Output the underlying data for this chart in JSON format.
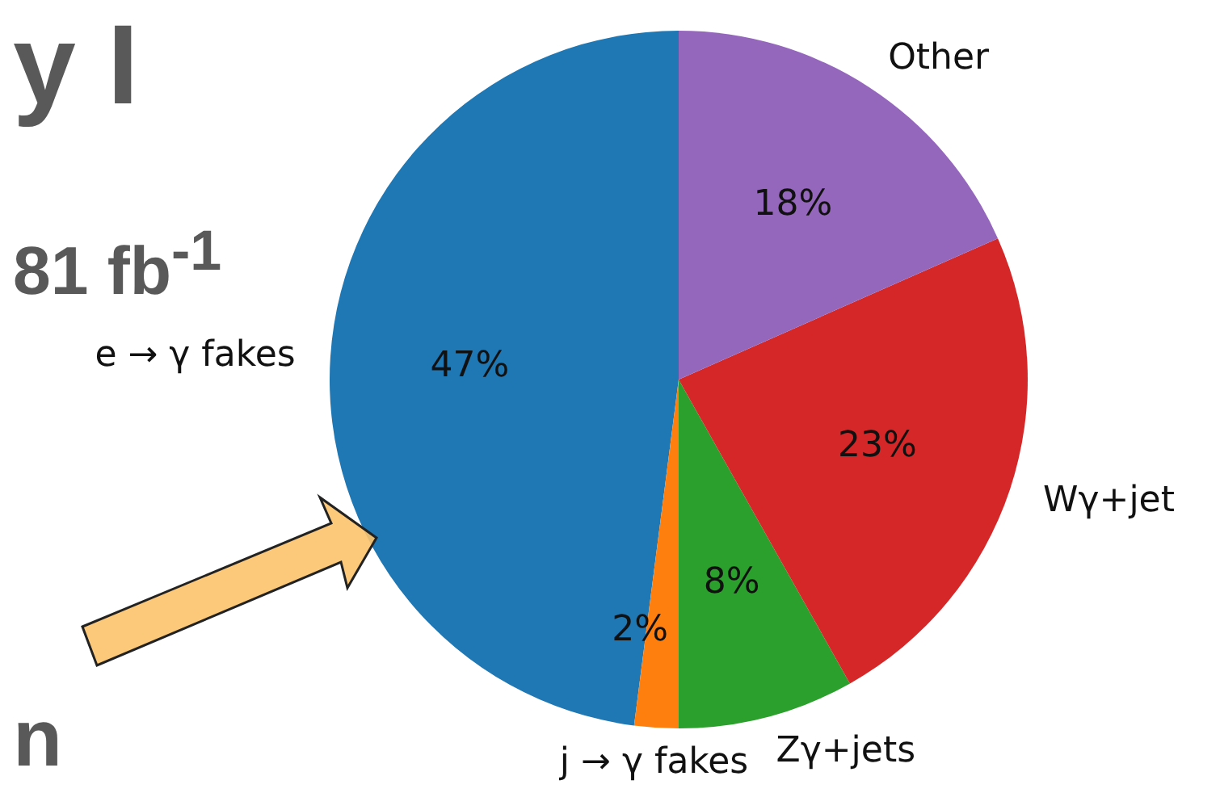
{
  "chart_data": {
    "type": "pie",
    "categories": [
      "e → γ fakes",
      "j → γ fakes",
      "Zγ+jets",
      "Wγ+jet",
      "Other"
    ],
    "values": [
      47,
      2,
      8,
      23,
      18
    ],
    "value_labels": [
      "47%",
      "2%",
      "8%",
      "23%",
      "18%"
    ],
    "colors": [
      "#1f77b4",
      "#ff7f0e",
      "#2ca02c",
      "#d62728",
      "#9467bd"
    ],
    "annotations": [
      "y I",
      "81 fb$^{-1}$",
      "n"
    ]
  }
}
